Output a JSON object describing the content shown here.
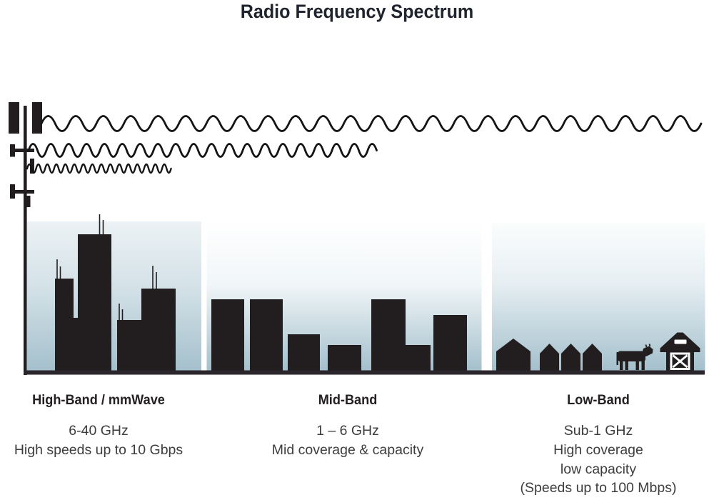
{
  "title": "Radio Frequency Spectrum",
  "colors": {
    "ink": "#221e20",
    "wave": "#141414",
    "panel_blue_bottom": "#a6c1cd",
    "ground": "#2a262b",
    "title_text": "#20242e",
    "heading_text": "#242021",
    "body_text": "#3d3d3d"
  },
  "illustration": {
    "tower": "cell-tower",
    "waves": [
      {
        "name": "high-band-short-wave",
        "wavelength": "short",
        "reach": "short"
      },
      {
        "name": "mid-band-medium-wave",
        "wavelength": "medium",
        "reach": "medium"
      },
      {
        "name": "low-band-long-wave",
        "wavelength": "long",
        "reach": "long"
      }
    ],
    "scenes": [
      "city-skyscrapers",
      "mid-rise-buildings",
      "rural-houses-cow-barn"
    ]
  },
  "sections": [
    {
      "id": "high-band",
      "heading": "High-Band / mmWave",
      "lines": [
        "6-40 GHz",
        "High speeds up to 10 Gbps"
      ]
    },
    {
      "id": "mid-band",
      "heading": "Mid-Band",
      "lines": [
        "1 – 6 GHz",
        "Mid coverage & capacity"
      ]
    },
    {
      "id": "low-band",
      "heading": "Low-Band",
      "lines": [
        "Sub-1 GHz",
        "High coverage",
        "low capacity",
        "(Speeds up to 100 Mbps)"
      ]
    }
  ]
}
